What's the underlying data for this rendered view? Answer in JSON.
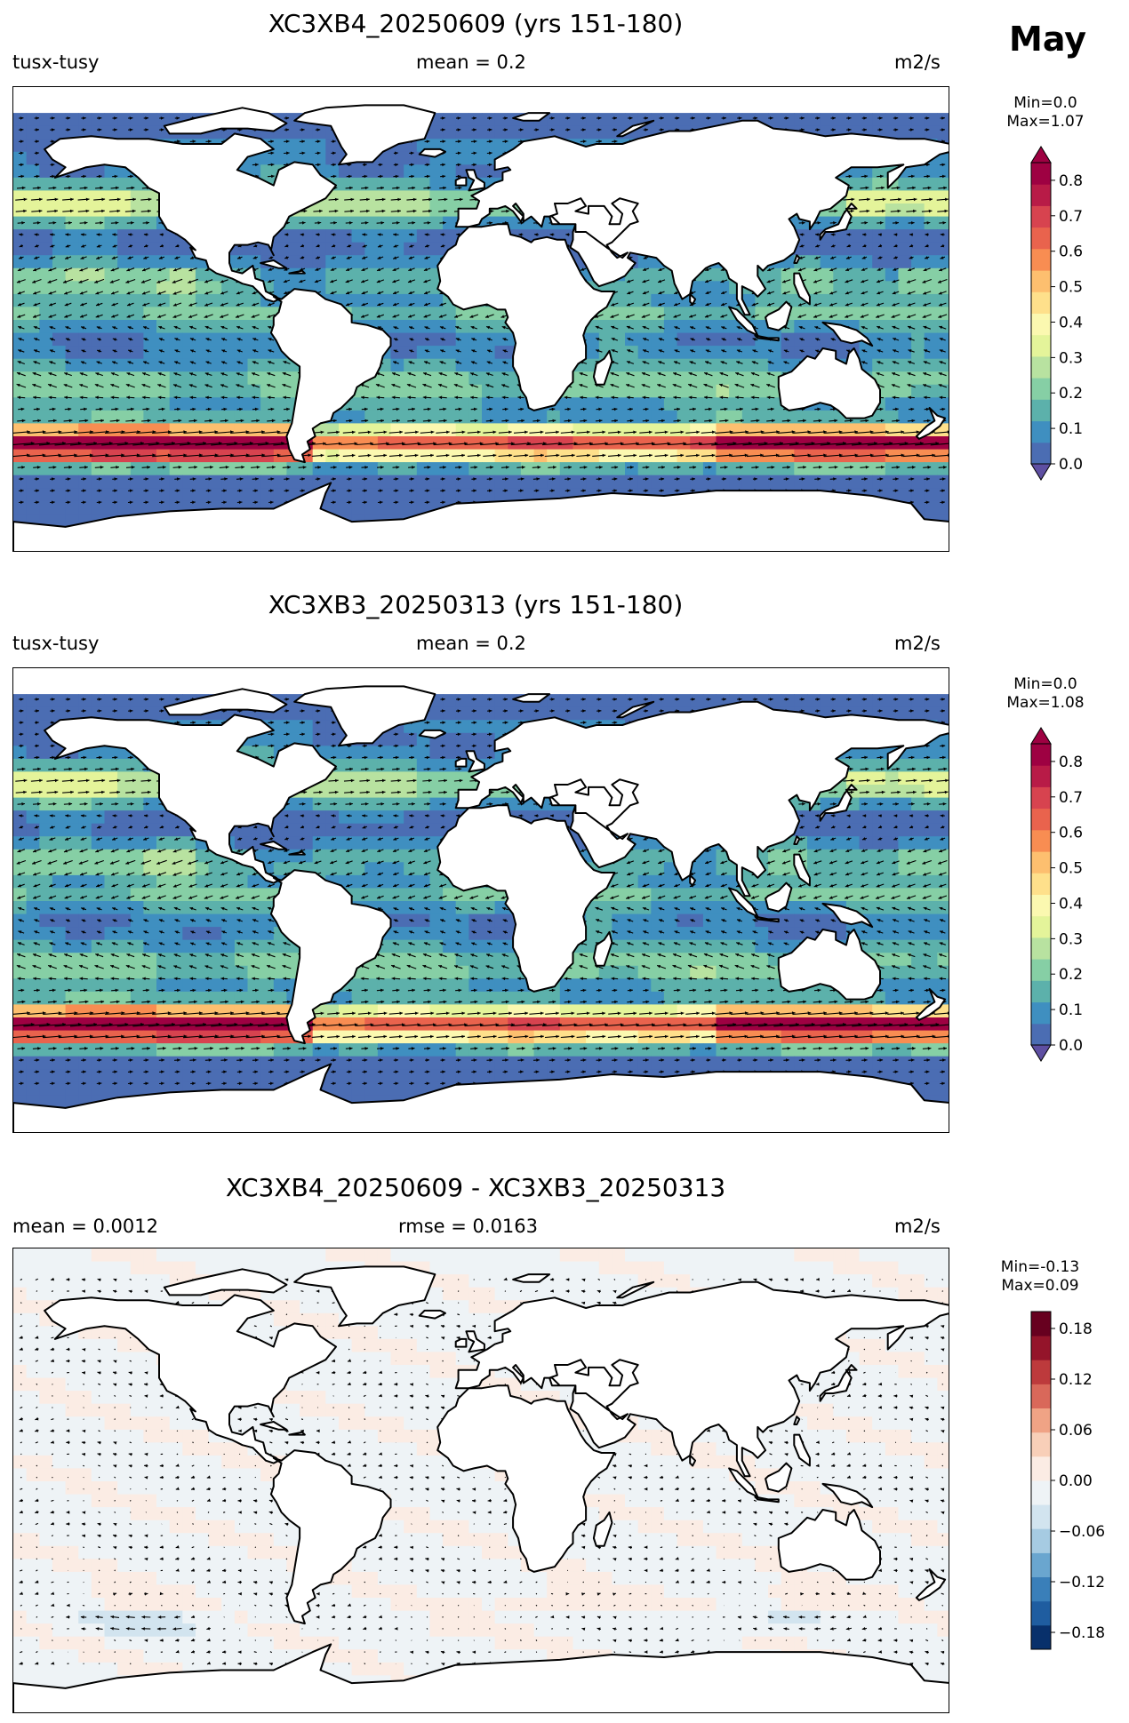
{
  "month": "May",
  "panels": [
    {
      "title": "XC3XB4_20250609 (yrs 151-180)",
      "left_label": "tusx-tusy",
      "center_label": "mean = 0.2",
      "units": "m2/s",
      "min_label": "Min=0.0",
      "max_label": "Max=1.07",
      "colorbar": {
        "ticks": [
          "0.0",
          "0.1",
          "0.2",
          "0.3",
          "0.4",
          "0.5",
          "0.6",
          "0.7",
          "0.8"
        ],
        "range": [
          0.0,
          0.85
        ],
        "colors": [
          "#4b6db3",
          "#3f8fc0",
          "#5cb1ab",
          "#86cfa5",
          "#b8e2a0",
          "#e4f49a",
          "#fbf8b0",
          "#fee08b",
          "#fdbf6f",
          "#f88d52",
          "#e9634d",
          "#d7434f",
          "#b81b47",
          "#9e0142"
        ],
        "extend": "both"
      }
    },
    {
      "title": "XC3XB3_20250313 (yrs 151-180)",
      "left_label": "tusx-tusy",
      "center_label": "mean = 0.2",
      "units": "m2/s",
      "min_label": "Min=0.0",
      "max_label": "Max=1.08",
      "colorbar": {
        "ticks": [
          "0.0",
          "0.1",
          "0.2",
          "0.3",
          "0.4",
          "0.5",
          "0.6",
          "0.7",
          "0.8"
        ],
        "range": [
          0.0,
          0.85
        ],
        "colors": [
          "#4b6db3",
          "#3f8fc0",
          "#5cb1ab",
          "#86cfa5",
          "#b8e2a0",
          "#e4f49a",
          "#fbf8b0",
          "#fee08b",
          "#fdbf6f",
          "#f88d52",
          "#e9634d",
          "#d7434f",
          "#b81b47",
          "#9e0142"
        ],
        "extend": "both"
      }
    },
    {
      "title": "XC3XB4_20250609 - XC3XB3_20250313",
      "left_label": "mean = 0.0012",
      "center_label": "rmse = 0.0163",
      "units": "m2/s",
      "min_label": "Min=-0.13",
      "max_label": "Max=0.09",
      "colorbar": {
        "ticks": [
          "0.18",
          "0.12",
          "0.06",
          "0.00",
          "−0.06",
          "−0.12",
          "−0.18"
        ],
        "range": [
          -0.2,
          0.2
        ],
        "colors": [
          "#08306b",
          "#1f5da0",
          "#3a7fb9",
          "#6aa6cf",
          "#a6cbe2",
          "#d2e4ef",
          "#eef3f6",
          "#fbece4",
          "#f8cfb8",
          "#f0a385",
          "#d9685a",
          "#bd3a3c",
          "#94142a",
          "#67001f"
        ],
        "extend": "none"
      }
    }
  ]
}
